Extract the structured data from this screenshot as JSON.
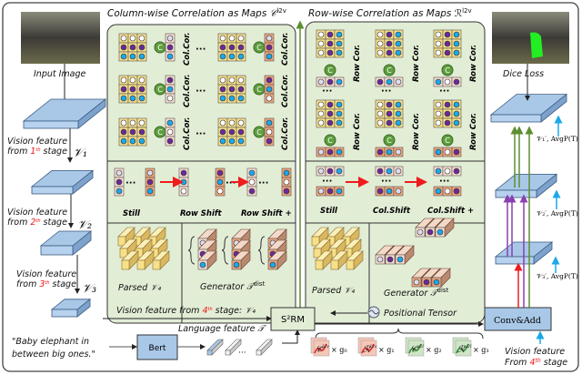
{
  "titles": {
    "column": "Column-wise Correlation as Maps 𝒞",
    "column_sup": "l2v",
    "row": "Row-wise Correlation as Maps ℛ",
    "row_sup": "l2v"
  },
  "left": {
    "input_image": "Input Image",
    "stage1": [
      "Vision feature",
      "from ",
      "1",
      "th",
      " stage"
    ],
    "stage2": [
      "Vision feature",
      "from ",
      "2",
      "th",
      " stage"
    ],
    "stage3": [
      "Vision feature",
      "from ",
      "3",
      "th",
      " stage"
    ],
    "v1": "𝒱₁",
    "v2": "𝒱₂",
    "v3": "𝒱₃",
    "quote_line1": "\"Baby elephant in",
    "quote_line2": "between big ones.\"",
    "bert": "Bert",
    "language_feature": "Language feature 𝒯",
    "vision4": [
      "Vision feature from ",
      "4",
      "th",
      " stage: 𝒱₄"
    ]
  },
  "column_panel": {
    "cor_label": "Col.Cor.",
    "corr_op": "C",
    "ellipsis": "···",
    "shifts": [
      "Still",
      "Row Shift",
      "Row Shift +"
    ],
    "parsed": "Parsed 𝒱₄",
    "generator": "Generator 𝒯",
    "generator_sup": "dist"
  },
  "row_panel": {
    "cor_label": "Row Cor.",
    "corr_op": "C",
    "ellipsis": "···",
    "shifts": [
      "Still",
      "Col.Shift",
      "Col.Shift +"
    ],
    "parsed": "Parsed 𝒱₄",
    "generator": "Generator 𝒯",
    "generator_sup": "dist"
  },
  "middle": {
    "s2rm": "S²RM",
    "positional_tensor": "Positional Tensor",
    "conv_add": "Conv&Add",
    "maps": [
      {
        "symbol": "𝒞",
        "sup": "l2v",
        "mult": "× g₀",
        "color": "red"
      },
      {
        "symbol": "ℛ",
        "sup": "l2v",
        "mult": "× g₁",
        "color": "red"
      },
      {
        "symbol": "𝒞",
        "sup": "v2l",
        "mult": "× g₂",
        "color": "green"
      },
      {
        "symbol": "ℛ",
        "sup": "v2l",
        "mult": "× g₃",
        "color": "green"
      }
    ]
  },
  "right": {
    "dice_loss": "Dice Loss",
    "f1": "𝒱₁′, AvgP(T)",
    "f2": "𝒱₂′, AvgP(T)",
    "f3": "𝒱₃′, AvgP(T)",
    "vision4_line1": "Vision feature",
    "vision4_line2": [
      "From ",
      "4",
      "th",
      " stage"
    ]
  },
  "colors": {
    "panel": "#e2edd6",
    "plate": "#a9c8e8",
    "cell_yellow": "#f7e08a",
    "cell_pink": "#f6dccf",
    "cell_orange": "#eea57c",
    "dot_purple": "#6a2a9a",
    "dot_cyan": "#19a9ec",
    "corr_green": "#5e9e3e",
    "arrow_red": "#ee1c1c",
    "arrow_purple": "#8b3fb0",
    "arrow_green": "#5e8e32",
    "arrow_cyan": "#1aa8e8"
  }
}
